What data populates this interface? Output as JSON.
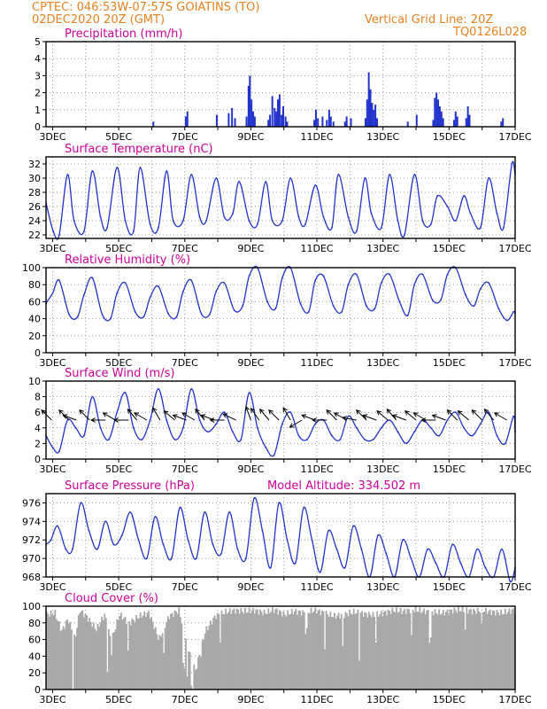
{
  "header": {
    "line1": "CPTEC:   046:53W-07:57S   GOIATINS (TO)",
    "line2": "02DEC2020 20Z (GMT)",
    "grid_note": "Vertical Grid Line: 20Z",
    "code": "TQ0126L028",
    "color": "#e8811f"
  },
  "colors": {
    "series": "#2233cc",
    "title": "#cc0099",
    "grid": "#9a9a9a",
    "cloud": "#a9a9a9",
    "wind_arrow": "#000000"
  },
  "chart_data": [
    {
      "type": "bar",
      "title": "Precipitation (mm/h)",
      "ylim": [
        0,
        5
      ],
      "yticks": [
        "0",
        "1",
        "2",
        "3",
        "4",
        "5"
      ],
      "xticks": [
        "3DEC",
        "5DEC",
        "7DEC",
        "9DEC",
        "11DEC",
        "13DEC",
        "15DEC",
        "17DEC"
      ],
      "xlim_days": [
        2.8,
        17.0
      ],
      "grid": "dotted",
      "x": [
        6.05,
        7.03,
        7.08,
        7.97,
        8.33,
        8.43,
        8.52,
        8.87,
        8.93,
        8.97,
        9.02,
        9.07,
        9.12,
        9.53,
        9.58,
        9.65,
        9.72,
        9.77,
        9.82,
        9.87,
        9.93,
        9.98,
        10.05,
        10.1,
        10.92,
        10.97,
        11.03,
        11.17,
        11.3,
        11.37,
        11.42,
        11.5,
        11.85,
        11.9,
        12.03,
        12.47,
        12.52,
        12.57,
        12.62,
        12.67,
        12.72,
        12.77,
        12.82,
        13.75,
        14.02,
        14.52,
        14.57,
        14.62,
        14.67,
        14.72,
        14.77,
        14.82,
        15.15,
        15.2,
        15.25,
        15.52,
        15.57,
        15.62,
        16.58,
        16.63
      ],
      "values": [
        0.3,
        0.6,
        0.9,
        0.7,
        0.8,
        1.1,
        0.5,
        0.6,
        2.4,
        3.0,
        1.6,
        0.9,
        0.6,
        0.4,
        0.7,
        1.8,
        1.1,
        0.9,
        1.6,
        1.9,
        0.7,
        1.2,
        0.6,
        0.3,
        0.4,
        1.0,
        0.5,
        0.6,
        0.4,
        1.0,
        0.6,
        0.3,
        0.3,
        0.6,
        0.5,
        0.5,
        1.6,
        3.2,
        2.2,
        1.4,
        1.0,
        1.3,
        0.5,
        0.3,
        0.7,
        0.4,
        1.7,
        2.0,
        1.6,
        1.2,
        0.9,
        0.5,
        0.4,
        0.9,
        0.6,
        0.5,
        1.2,
        0.7,
        0.3,
        0.5
      ]
    },
    {
      "type": "line",
      "title": "Surface Temperature (nC)",
      "ylim": [
        21.5,
        33
      ],
      "yticks": [
        "22",
        "24",
        "26",
        "28",
        "30",
        "32"
      ],
      "xticks": [
        "3DEC",
        "5DEC",
        "7DEC",
        "9DEC",
        "11DEC",
        "13DEC",
        "15DEC",
        "17DEC"
      ],
      "xlim_days": [
        2.8,
        17.0
      ],
      "grid": "dotted",
      "x": [
        2.8,
        3.02,
        3.2,
        3.45,
        3.65,
        3.95,
        4.2,
        4.45,
        4.65,
        4.95,
        5.2,
        5.45,
        5.65,
        5.95,
        6.2,
        6.45,
        6.65,
        6.95,
        7.2,
        7.45,
        7.65,
        7.95,
        8.2,
        8.45,
        8.65,
        8.95,
        9.2,
        9.45,
        9.65,
        9.95,
        10.2,
        10.45,
        10.65,
        10.95,
        11.2,
        11.45,
        11.65,
        11.95,
        12.2,
        12.45,
        12.65,
        12.95,
        13.2,
        13.45,
        13.65,
        13.95,
        14.2,
        14.45,
        14.65,
        14.95,
        15.2,
        15.45,
        15.65,
        15.95,
        16.2,
        16.45,
        16.65,
        16.9,
        17.0
      ],
      "values": [
        26.5,
        22.5,
        22.0,
        30.5,
        24.0,
        22.5,
        31.0,
        24.5,
        23.0,
        31.5,
        24.0,
        22.5,
        31.5,
        23.5,
        23.0,
        31.0,
        24.0,
        24.0,
        30.5,
        24.5,
        24.0,
        30.0,
        24.5,
        25.0,
        29.5,
        24.0,
        23.5,
        29.5,
        24.0,
        24.0,
        30.0,
        24.5,
        23.5,
        29.0,
        24.5,
        23.0,
        30.5,
        24.5,
        22.5,
        30.0,
        25.0,
        23.0,
        30.5,
        24.0,
        22.0,
        30.5,
        24.0,
        23.5,
        27.5,
        26.0,
        24.0,
        27.5,
        25.0,
        23.0,
        30.0,
        25.0,
        23.0,
        32.0,
        30.5
      ]
    },
    {
      "type": "line",
      "title": "Relative Humidity (%)",
      "ylim": [
        0,
        100
      ],
      "yticks": [
        "0",
        "20",
        "40",
        "60",
        "80",
        "100"
      ],
      "xticks": [
        "3DEC",
        "5DEC",
        "7DEC",
        "9DEC",
        "11DEC",
        "13DEC",
        "15DEC",
        "17DEC"
      ],
      "xlim_days": [
        2.8,
        17.0
      ],
      "grid": "dotted",
      "x": [
        2.8,
        3.0,
        3.2,
        3.5,
        3.75,
        3.95,
        4.2,
        4.5,
        4.75,
        4.95,
        5.2,
        5.5,
        5.75,
        5.95,
        6.2,
        6.5,
        6.75,
        6.95,
        7.2,
        7.5,
        7.75,
        7.95,
        8.2,
        8.5,
        8.75,
        8.95,
        9.2,
        9.5,
        9.75,
        9.95,
        10.2,
        10.5,
        10.75,
        10.95,
        11.2,
        11.5,
        11.75,
        11.95,
        12.2,
        12.5,
        12.75,
        12.95,
        13.2,
        13.5,
        13.75,
        13.95,
        14.2,
        14.5,
        14.75,
        14.95,
        15.2,
        15.5,
        15.75,
        15.95,
        16.2,
        16.5,
        16.75,
        16.95,
        17.0
      ],
      "values": [
        58,
        70,
        85,
        45,
        42,
        68,
        88,
        45,
        40,
        70,
        82,
        48,
        42,
        65,
        78,
        46,
        42,
        72,
        85,
        46,
        45,
        72,
        82,
        50,
        55,
        90,
        100,
        60,
        52,
        88,
        100,
        58,
        48,
        85,
        90,
        55,
        48,
        80,
        92,
        55,
        52,
        82,
        92,
        60,
        44,
        80,
        92,
        62,
        62,
        92,
        100,
        68,
        55,
        75,
        82,
        52,
        38,
        48,
        47
      ]
    },
    {
      "type": "line",
      "title": "Surface Wind (m/s)",
      "ylim": [
        0,
        10
      ],
      "yticks": [
        "0",
        "2",
        "4",
        "6",
        "8",
        "10"
      ],
      "xticks": [
        "3DEC",
        "5DEC",
        "7DEC",
        "9DEC",
        "11DEC",
        "13DEC",
        "15DEC",
        "17DEC"
      ],
      "xlim_days": [
        2.8,
        17.0
      ],
      "grid": "dotted",
      "x": [
        2.8,
        3.0,
        3.2,
        3.45,
        3.7,
        3.95,
        4.2,
        4.45,
        4.7,
        4.95,
        5.2,
        5.45,
        5.7,
        5.95,
        6.2,
        6.45,
        6.7,
        6.95,
        7.2,
        7.45,
        7.7,
        7.95,
        8.2,
        8.45,
        8.7,
        8.95,
        9.2,
        9.45,
        9.7,
        9.95,
        10.2,
        10.45,
        10.7,
        10.95,
        11.2,
        11.45,
        11.7,
        11.95,
        12.2,
        12.45,
        12.7,
        12.95,
        13.2,
        13.45,
        13.7,
        13.95,
        14.2,
        14.45,
        14.7,
        14.95,
        15.2,
        15.45,
        15.7,
        15.95,
        16.2,
        16.45,
        16.7,
        16.95,
        17.0
      ],
      "values": [
        3.0,
        1.5,
        1.0,
        5.0,
        4.0,
        3.0,
        8.0,
        4.0,
        2.5,
        6.0,
        8.5,
        4.0,
        2.5,
        5.0,
        9.0,
        5.0,
        2.5,
        4.0,
        9.0,
        5.0,
        3.5,
        4.5,
        6.0,
        3.5,
        2.5,
        8.5,
        4.0,
        1.5,
        0.5,
        4.5,
        6.0,
        3.0,
        2.5,
        4.5,
        5.0,
        3.0,
        2.5,
        5.5,
        4.0,
        2.5,
        2.5,
        4.0,
        5.0,
        3.5,
        2.0,
        3.5,
        5.0,
        4.0,
        3.0,
        5.0,
        6.0,
        4.0,
        3.0,
        4.5,
        6.0,
        3.0,
        2.0,
        5.5,
        3.5
      ],
      "arrows": [
        {
          "day": 2.97,
          "dir": 225
        },
        {
          "day": 3.5,
          "dir": 225
        },
        {
          "day": 3.72,
          "dir": 250
        },
        {
          "day": 4.12,
          "dir": 225
        },
        {
          "day": 4.6,
          "dir": 270
        },
        {
          "day": 4.9,
          "dir": 240
        },
        {
          "day": 5.3,
          "dir": 270
        },
        {
          "day": 5.55,
          "dir": 220
        },
        {
          "day": 5.85,
          "dir": 240
        },
        {
          "day": 6.25,
          "dir": 210
        },
        {
          "day": 6.7,
          "dir": 230
        },
        {
          "day": 7.05,
          "dir": 250
        },
        {
          "day": 7.3,
          "dir": 240
        },
        {
          "day": 7.6,
          "dir": 220
        },
        {
          "day": 7.9,
          "dir": 250
        },
        {
          "day": 8.2,
          "dir": 270
        },
        {
          "day": 8.55,
          "dir": 245
        },
        {
          "day": 9.0,
          "dir": 200
        },
        {
          "day": 9.25,
          "dir": 215
        },
        {
          "day": 9.55,
          "dir": 220
        },
        {
          "day": 9.85,
          "dir": 225
        },
        {
          "day": 10.2,
          "dir": 210
        },
        {
          "day": 10.55,
          "dir": 300
        },
        {
          "day": 10.95,
          "dir": 250
        },
        {
          "day": 11.3,
          "dir": 270
        },
        {
          "day": 11.6,
          "dir": 225
        },
        {
          "day": 11.9,
          "dir": 240
        },
        {
          "day": 12.2,
          "dir": 260
        },
        {
          "day": 12.5,
          "dir": 225
        },
        {
          "day": 12.8,
          "dir": 250
        },
        {
          "day": 13.15,
          "dir": 230
        },
        {
          "day": 13.4,
          "dir": 220
        },
        {
          "day": 13.7,
          "dir": 250
        },
        {
          "day": 14.0,
          "dir": 230
        },
        {
          "day": 14.3,
          "dir": 240
        },
        {
          "day": 14.6,
          "dir": 270
        },
        {
          "day": 14.9,
          "dir": 250
        },
        {
          "day": 15.25,
          "dir": 225
        },
        {
          "day": 15.6,
          "dir": 230
        },
        {
          "day": 16.0,
          "dir": 225
        },
        {
          "day": 16.35,
          "dir": 220
        },
        {
          "day": 16.75,
          "dir": 240
        }
      ]
    },
    {
      "type": "line",
      "title": "Surface Pressure (hPa)",
      "annotation": "Model Altitude: 334.502 m",
      "ylim": [
        968,
        977
      ],
      "yticks": [
        "968",
        "970",
        "972",
        "974",
        "976"
      ],
      "xticks": [
        "3DEC",
        "5DEC",
        "7DEC",
        "9DEC",
        "11DEC",
        "13DEC",
        "15DEC",
        "17DEC"
      ],
      "xlim_days": [
        2.8,
        17.0
      ],
      "grid": "dotted",
      "x": [
        2.8,
        2.95,
        3.15,
        3.4,
        3.6,
        3.85,
        4.1,
        4.35,
        4.6,
        4.85,
        5.1,
        5.35,
        5.6,
        5.85,
        6.1,
        6.35,
        6.6,
        6.85,
        7.1,
        7.35,
        7.6,
        7.85,
        8.1,
        8.35,
        8.6,
        8.85,
        9.1,
        9.35,
        9.6,
        9.85,
        10.1,
        10.35,
        10.6,
        10.85,
        11.1,
        11.35,
        11.6,
        11.85,
        12.1,
        12.35,
        12.6,
        12.85,
        13.1,
        13.35,
        13.6,
        13.85,
        14.1,
        14.35,
        14.6,
        14.85,
        15.1,
        15.35,
        15.6,
        15.85,
        16.1,
        16.35,
        16.6,
        16.85,
        17.0
      ],
      "values": [
        971.5,
        972.0,
        973.5,
        971.0,
        971.0,
        976.0,
        973.0,
        971.0,
        974.0,
        971.5,
        972.5,
        975.0,
        972.0,
        970.0,
        974.5,
        971.5,
        970.0,
        975.5,
        972.0,
        970.0,
        975.0,
        971.5,
        970.5,
        975.0,
        971.0,
        970.0,
        976.5,
        973.0,
        969.0,
        976.0,
        972.0,
        969.5,
        975.5,
        972.0,
        968.5,
        973.0,
        971.0,
        969.0,
        973.5,
        971.0,
        968.0,
        972.5,
        970.5,
        968.0,
        972.0,
        970.0,
        968.0,
        971.0,
        969.5,
        968.0,
        971.5,
        969.5,
        968.0,
        971.0,
        969.0,
        968.0,
        971.0,
        967.5,
        969.0
      ]
    },
    {
      "type": "bar",
      "title": "Cloud Cover (%)",
      "ylim": [
        0,
        100
      ],
      "yticks": [
        "0",
        "20",
        "40",
        "60",
        "80",
        "100"
      ],
      "xticks": [
        "3DEC",
        "5DEC",
        "7DEC",
        "9DEC",
        "11DEC",
        "13DEC",
        "15DEC",
        "17DEC"
      ],
      "xlim_days": [
        2.8,
        17.0
      ],
      "grid": "dotted",
      "knots_x": [
        2.8,
        3.05,
        3.25,
        3.45,
        3.65,
        3.8,
        4.0,
        4.3,
        4.55,
        4.75,
        5.0,
        5.3,
        5.6,
        5.9,
        6.2,
        6.5,
        6.8,
        7.05,
        7.3,
        7.6,
        7.9,
        8.2,
        8.5,
        8.8,
        9.1,
        9.4,
        9.7,
        10.0,
        10.3,
        10.6,
        10.9,
        11.2,
        11.5,
        11.8,
        12.1,
        12.4,
        12.7,
        13.0,
        13.3,
        13.6,
        13.9,
        14.2,
        14.5,
        14.8,
        15.1,
        15.4,
        15.7,
        16.0,
        16.3,
        16.6,
        16.9,
        17.0
      ],
      "knots_y": [
        90,
        92,
        70,
        85,
        60,
        95,
        88,
        72,
        90,
        58,
        90,
        80,
        88,
        92,
        60,
        88,
        95,
        55,
        22,
        70,
        88,
        93,
        95,
        94,
        95,
        92,
        96,
        90,
        94,
        92,
        95,
        92,
        88,
        90,
        93,
        91,
        89,
        92,
        95,
        94,
        96,
        94,
        93,
        92,
        95,
        96,
        94,
        95,
        93,
        92,
        95,
        95
      ],
      "dips_x": [
        3.6,
        4.65,
        4.75,
        5.25,
        6.35,
        6.95,
        7.05,
        7.2,
        7.45,
        8.05,
        10.65,
        11.2,
        11.75,
        12.25,
        12.75,
        13.85,
        14.4,
        15.45,
        15.95
      ],
      "dips_y": [
        3,
        25,
        45,
        45,
        40,
        28,
        12,
        2,
        42,
        60,
        70,
        52,
        50,
        38,
        58,
        62,
        60,
        72,
        75
      ]
    }
  ]
}
